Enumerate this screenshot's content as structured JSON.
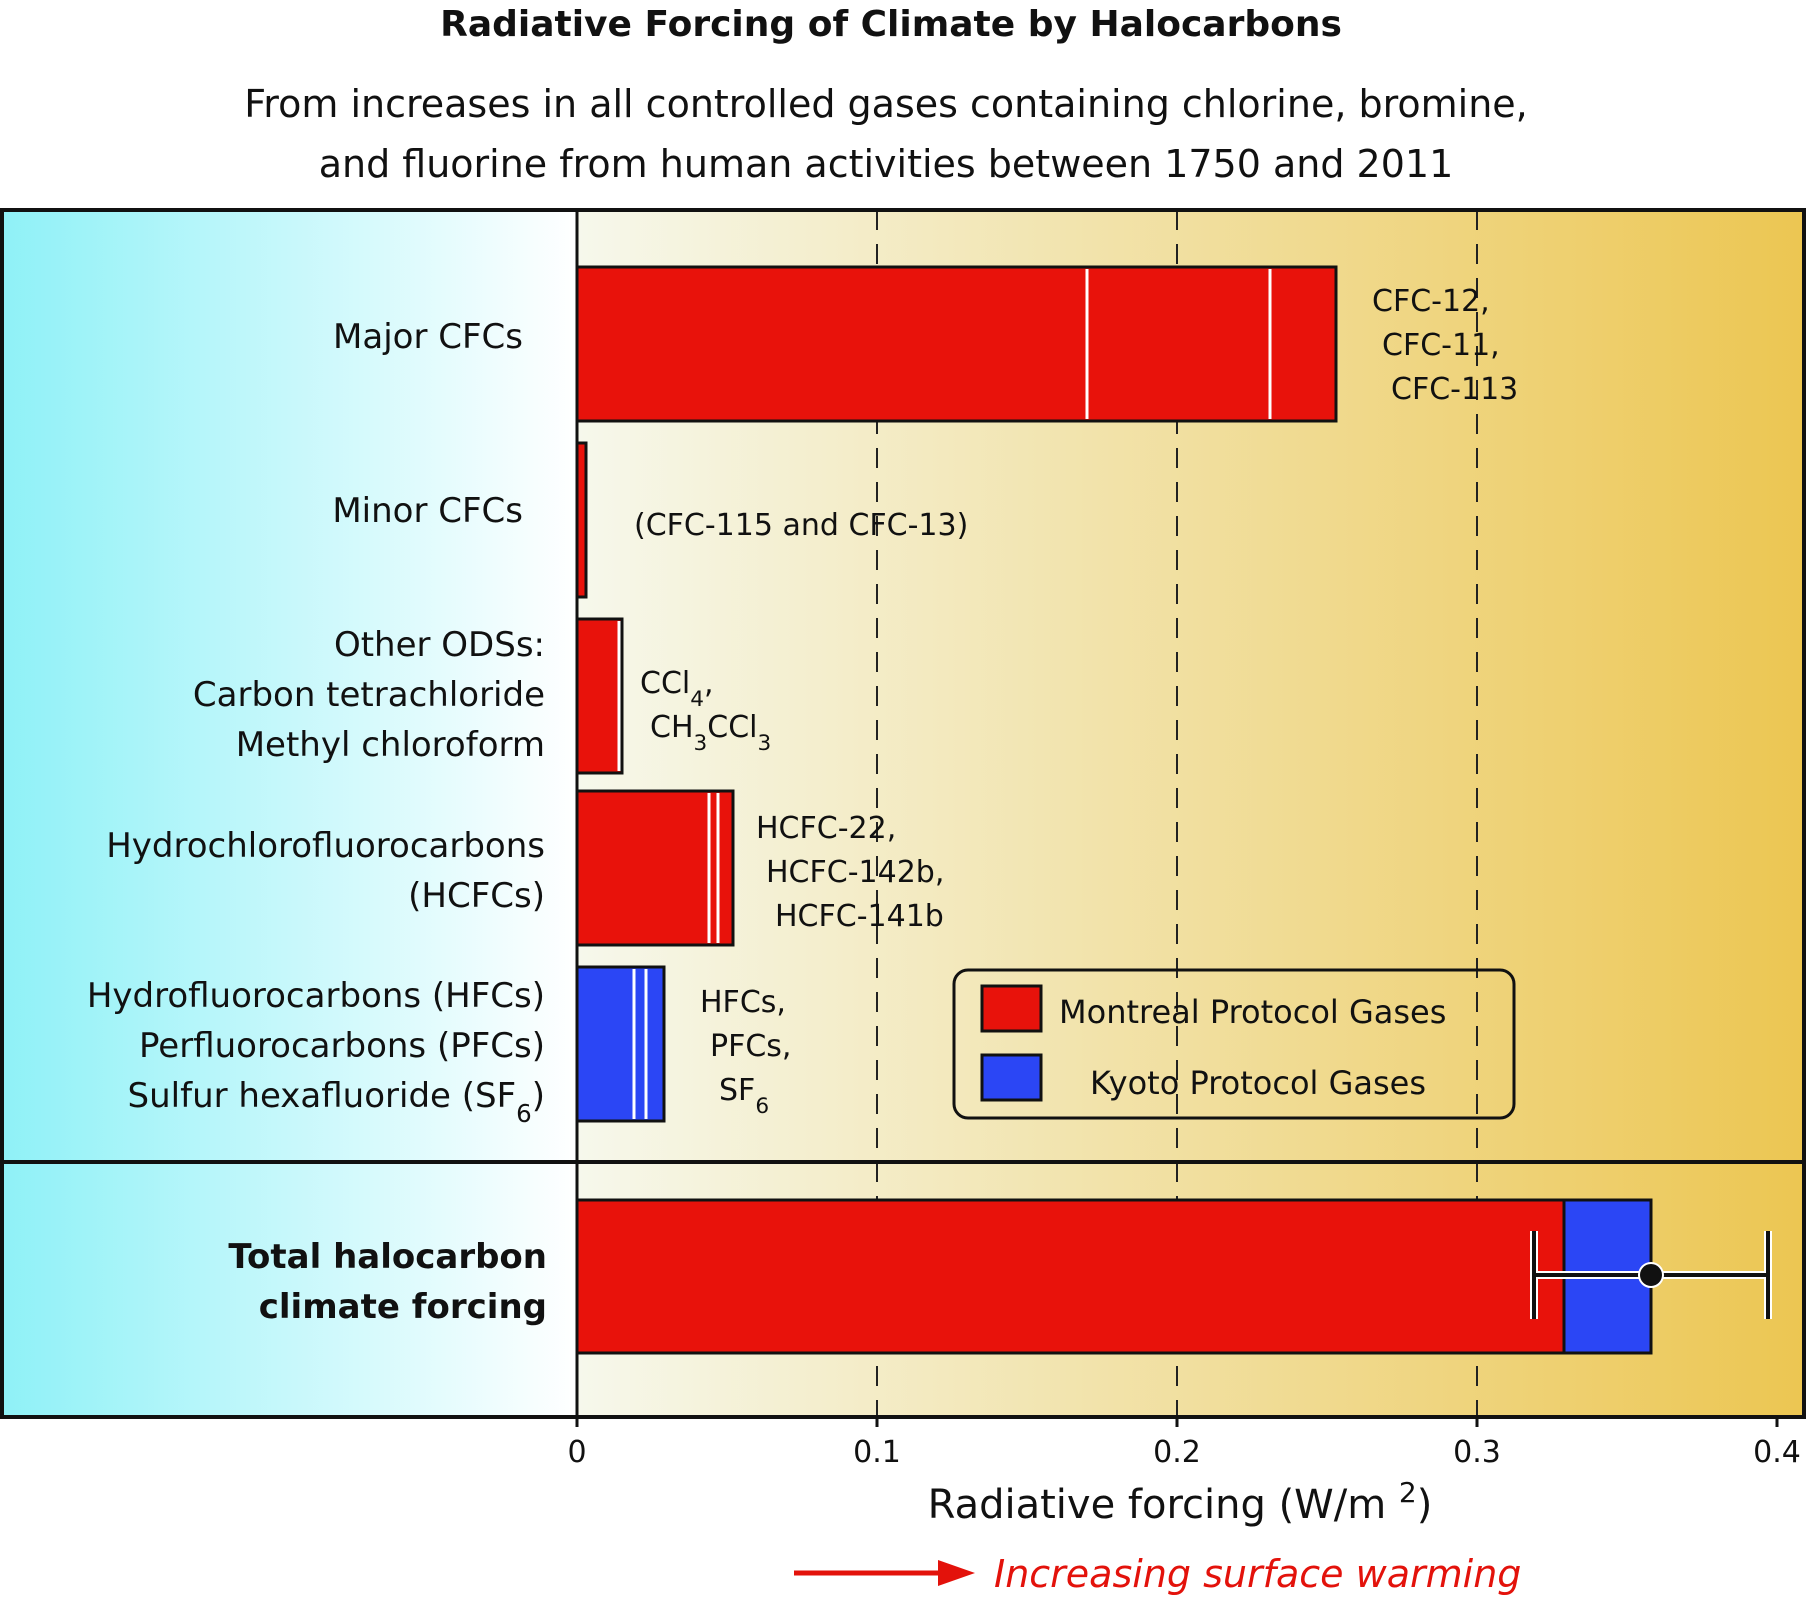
{
  "title": "Radiative Forcing of Climate by Halocarbons",
  "subtitle_lines": [
    "From increases in all controlled gases containing chlorine, bromine,",
    "and fluorine from human activities between 1750 and 2011"
  ],
  "colors": {
    "montreal": "#e8120b",
    "kyoto": "#2b46f5",
    "left_panel_start": "#8ff1f7",
    "left_panel_end": "#ffffff",
    "plot_bg_start": "#f6f8ec",
    "plot_bg_end": "#ecc652",
    "warming_arrow": "#e3120b"
  },
  "legend": {
    "position": "lower-right of top panel",
    "items": [
      {
        "label": "Montreal Protocol Gases",
        "color_key": "montreal"
      },
      {
        "label": "Kyoto Protocol Gases",
        "color_key": "kyoto"
      }
    ]
  },
  "warming_note": "Increasing surface warming",
  "chart_data": {
    "type": "bar",
    "orientation": "horizontal",
    "title": "Radiative Forcing of Climate by Halocarbons",
    "xlabel": "Radiative forcing (W/m²)",
    "xlim": [
      0,
      0.4
    ],
    "xticks": [
      {
        "value": 0,
        "label": "0"
      },
      {
        "value": 0.1,
        "label": "0.1"
      },
      {
        "value": 0.2,
        "label": "0.2"
      },
      {
        "value": 0.3,
        "label": "0.3"
      },
      {
        "value": 0.4,
        "label": "0.4"
      }
    ],
    "grid": "vertical dashed lines at 0.1, 0.2, 0.3",
    "categories": [
      {
        "label_lines": [
          "Major CFCs"
        ],
        "group": "montreal",
        "segments": [
          0.17,
          0.061,
          0.022
        ],
        "annotation": [
          "CFC-12,",
          "CFC-11,",
          "CFC-113"
        ]
      },
      {
        "label_lines": [
          "Minor CFCs"
        ],
        "group": "montreal",
        "segments": [
          0.003
        ],
        "annotation": [
          "(CFC-115 and CFC-13)"
        ]
      },
      {
        "label_lines": [
          "Other ODSs:",
          "Carbon tetrachloride",
          "Methyl chloroform"
        ],
        "group": "montreal",
        "segments": [
          0.014,
          0.001
        ],
        "annotation": [
          [
            {
              "t": "CCl"
            },
            {
              "t": "4",
              "sub": true
            },
            {
              "t": ","
            }
          ],
          [
            {
              "t": "CH"
            },
            {
              "t": "3",
              "sub": true
            },
            {
              "t": "CCl"
            },
            {
              "t": "3",
              "sub": true
            }
          ]
        ]
      },
      {
        "label_lines": [
          "Hydrochlorofluorocarbons",
          "(HCFCs)"
        ],
        "group": "montreal",
        "segments": [
          0.044,
          0.003,
          0.005
        ],
        "annotation": [
          "HCFC-22,",
          "HCFC-142b,",
          "HCFC-141b"
        ]
      },
      {
        "label_lines": [
          "Hydrofluorocarbons (HFCs)",
          "Perfluorocarbons (PFCs)",
          [
            {
              "t": "Sulfur hexafluoride (SF"
            },
            {
              "t": "6",
              "sub": true
            },
            {
              "t": ")"
            }
          ]
        ],
        "group": "kyoto",
        "segments": [
          0.019,
          0.004,
          0.006
        ],
        "annotation": [
          "HFCs,",
          "PFCs,",
          [
            {
              "t": "SF"
            },
            {
              "t": "6",
              "sub": true
            }
          ]
        ]
      }
    ],
    "total": {
      "label_lines": [
        "Total halocarbon",
        "climate forcing"
      ],
      "montreal": 0.329,
      "kyoto": 0.029,
      "value": 0.358,
      "error_range": [
        0.319,
        0.397
      ]
    }
  }
}
